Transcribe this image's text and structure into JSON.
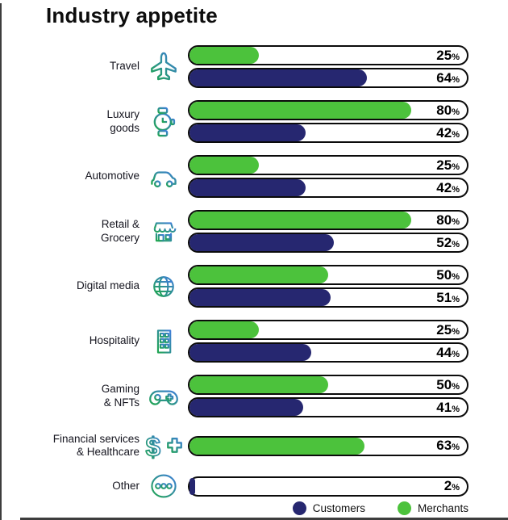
{
  "title": "Industry appetite",
  "labels": {
    "percent_sign": "%"
  },
  "colors": {
    "merchants": "#4CC23C",
    "customers": "#262770",
    "track_border": "#0b0b0b",
    "icon_gradient_start": "#1FA550",
    "icon_gradient_end": "#3E7ED8",
    "page_edge": "#3D3D3D"
  },
  "display": {
    "row_labels": [
      "Travel",
      "Luxury\ngoods",
      "Automotive",
      "Retail &\nGrocery",
      "Digital media",
      "Hospitality",
      "Gaming\n& NFTs",
      "Financial services\n& Healthcare",
      "Other"
    ],
    "row_icons": [
      "airplane-icon",
      "watch-icon",
      "car-icon",
      "storefront-icon",
      "globe-icon",
      "building-icon",
      "game-controller-icon",
      "dollar-health-icon",
      "three-circles-icon"
    ]
  },
  "chart_data": {
    "type": "bar",
    "orientation": "horizontal",
    "title": "Industry appetite",
    "categories": [
      "Travel",
      "Luxury goods",
      "Automotive",
      "Retail & Grocery",
      "Digital media",
      "Hospitality",
      "Gaming & NFTs",
      "Financial services & Healthcare",
      "Other"
    ],
    "series": [
      {
        "name": "Merchants",
        "color": "#4CC23C",
        "values": [
          25,
          80,
          25,
          80,
          50,
          25,
          50,
          63,
          null
        ]
      },
      {
        "name": "Customers",
        "color": "#262770",
        "values": [
          64,
          42,
          42,
          52,
          51,
          44,
          41,
          null,
          2
        ]
      }
    ],
    "xlim": [
      0,
      100
    ],
    "value_suffix": "%",
    "grid": false,
    "legend_position": "bottom-right"
  }
}
